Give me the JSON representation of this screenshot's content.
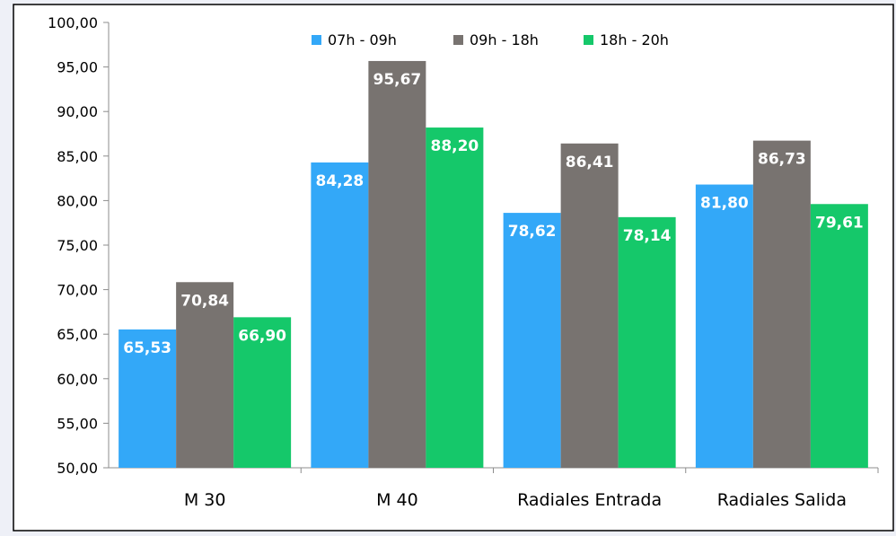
{
  "chart_data": {
    "type": "bar",
    "title": "",
    "xlabel": "",
    "ylabel": "",
    "categories": [
      "M 30",
      "M 40",
      "Radiales Entrada",
      "Radiales Salida"
    ],
    "ylim": [
      50,
      100
    ],
    "ytick_step": 5,
    "ytick_labels": [
      "50,00",
      "55,00",
      "60,00",
      "65,00",
      "70,00",
      "75,00",
      "80,00",
      "85,00",
      "90,00",
      "95,00",
      "100,00"
    ],
    "grid": false,
    "legend": "top-center",
    "series": [
      {
        "name": "07h - 09h",
        "color": "#33a8f8",
        "values": [
          65.53,
          84.28,
          78.62,
          81.8
        ],
        "labels": [
          "65,53",
          "84,28",
          "78,62",
          "81,80"
        ]
      },
      {
        "name": "09h - 18h",
        "color": "#787370",
        "values": [
          70.84,
          95.67,
          86.41,
          86.73
        ],
        "labels": [
          "70,84",
          "95,67",
          "86,41",
          "86,73"
        ]
      },
      {
        "name": "18h - 20h",
        "color": "#15c86a",
        "values": [
          66.9,
          88.2,
          78.14,
          79.61
        ],
        "labels": [
          "66,90",
          "88,20",
          "78,14",
          "79,61"
        ]
      }
    ]
  }
}
